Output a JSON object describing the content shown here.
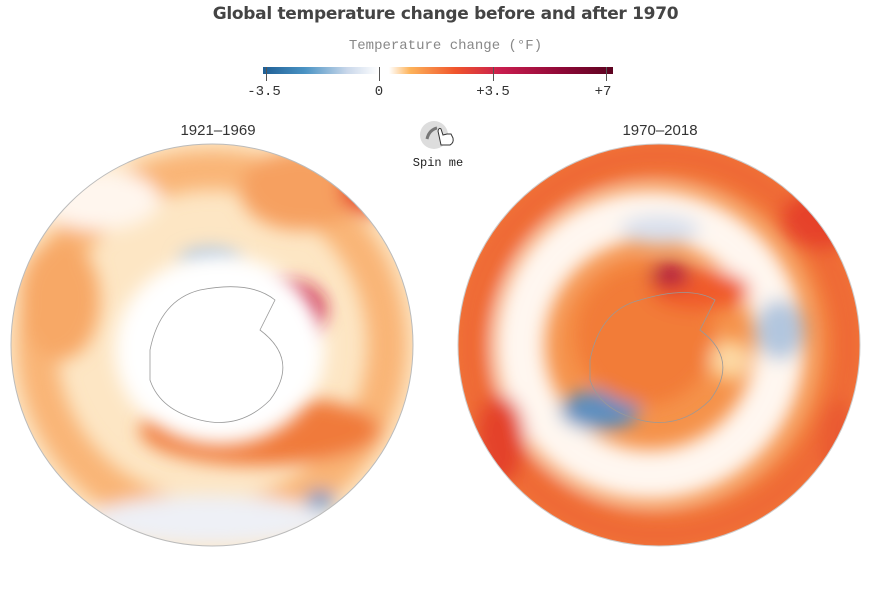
{
  "title": "Global temperature change before and after 1970",
  "legend": {
    "title": "Temperature change (°F)",
    "ticks": [
      "-3.5",
      "0",
      "+3.5",
      "+7"
    ],
    "colors": {
      "cold": "#1f5f95",
      "neutral": "#ffffff",
      "warm": "#f0552c",
      "hot": "#5c0320"
    }
  },
  "panels": [
    {
      "label": "1921–1969"
    },
    {
      "label": "1970–2018"
    }
  ],
  "spin": {
    "label": "Spin me",
    "icon": "hand-pointer-rotate-icon"
  }
}
